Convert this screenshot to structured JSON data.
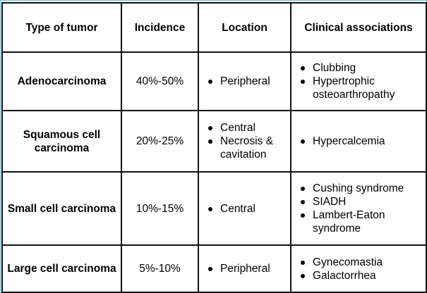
{
  "table": {
    "headers": {
      "type": "Type of tumor",
      "incidence": "Incidence",
      "location": "Location",
      "clinical": "Clinical associations"
    },
    "rows": [
      {
        "type": "Adenocarcinoma",
        "incidence": "40%-50%",
        "location": [
          "Peripheral"
        ],
        "clinical": [
          "Clubbing",
          "Hypertrophic osteoarthropathy"
        ]
      },
      {
        "type": "Squamous cell carcinoma",
        "incidence": "20%-25%",
        "location": [
          "Central",
          "Necrosis & cavitation"
        ],
        "clinical": [
          "Hypercalcemia"
        ]
      },
      {
        "type": "Small cell carcinoma",
        "incidence": "10%-15%",
        "location": [
          "Central"
        ],
        "clinical": [
          "Cushing syndrome",
          "SIADH",
          "Lambert-Eaton syndrome"
        ]
      },
      {
        "type": "Large cell carcinoma",
        "incidence": "5%-10%",
        "location": [
          "Peripheral"
        ],
        "clinical": [
          "Gynecomastia",
          "Galactorrhea"
        ]
      }
    ]
  }
}
